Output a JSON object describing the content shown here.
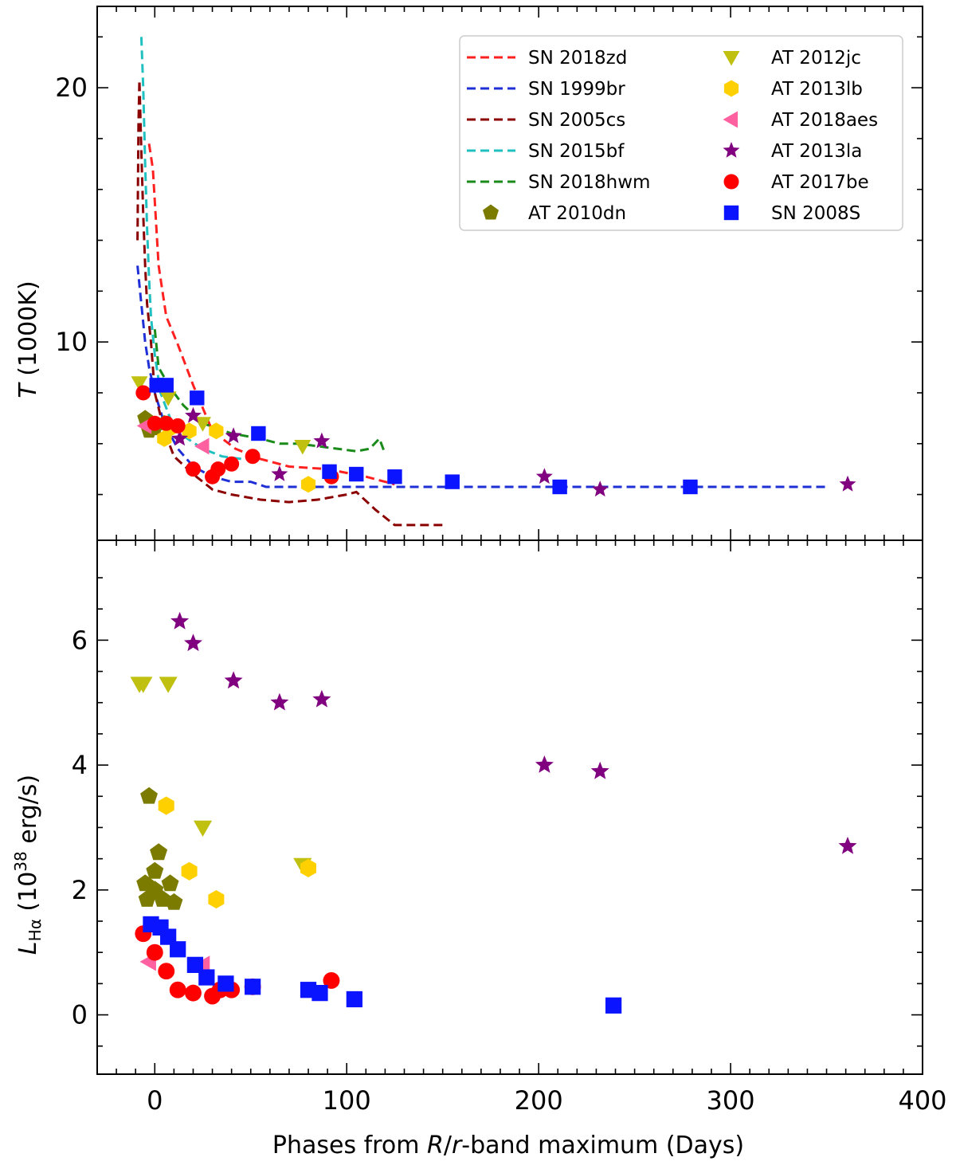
{
  "chart_data": [
    {
      "type": "line+scatter",
      "panel": "top",
      "ylabel_symbol": "T",
      "ylabel_unit": "(1000K)",
      "xlim": [
        -30,
        400
      ],
      "ylim": [
        2.2,
        23.2
      ],
      "yticks_major": [
        10,
        20
      ],
      "legend_position": "top-right",
      "lines": [
        {
          "name": "SN 2018zd",
          "color": "#ff2020",
          "x": [
            -3,
            -1,
            2,
            6,
            12,
            20,
            30,
            42,
            55,
            70,
            90,
            110,
            125
          ],
          "y": [
            17.8,
            16.8,
            13.0,
            11.0,
            9.9,
            8.3,
            6.5,
            5.8,
            5.4,
            5.1,
            5.0,
            4.7,
            4.4
          ]
        },
        {
          "name": "SN 1999br",
          "color": "#1f2fd6",
          "x": [
            -9,
            -7,
            -5,
            -3,
            0,
            5,
            12,
            20,
            30,
            40,
            50,
            58,
            65,
            80,
            120,
            200,
            300,
            350
          ],
          "y": [
            13.0,
            11.5,
            10.0,
            9.0,
            8.0,
            6.8,
            5.8,
            5.1,
            4.7,
            4.5,
            4.5,
            4.3,
            4.3,
            4.3,
            4.3,
            4.3,
            4.3,
            4.3
          ]
        },
        {
          "name": "SN 2005cs",
          "color": "#8b0000",
          "x": [
            -9,
            -8.5,
            -8,
            -7,
            -6,
            -5,
            -4,
            -2,
            0,
            5,
            10,
            20,
            30,
            40,
            55,
            70,
            85,
            100,
            105,
            115,
            125,
            150
          ],
          "y": [
            14.0,
            18.5,
            20.3,
            17.5,
            15.0,
            13.0,
            11.5,
            10.0,
            8.0,
            6.5,
            5.5,
            4.8,
            4.2,
            4.0,
            3.8,
            3.7,
            3.8,
            4.0,
            4.1,
            3.4,
            2.8,
            2.8
          ]
        },
        {
          "name": "SN 2015bf",
          "color": "#20c0c0",
          "x": [
            -7,
            -6,
            -5,
            -4,
            -3,
            -2,
            0,
            3,
            8,
            15,
            25,
            35,
            45
          ],
          "y": [
            22.0,
            20.0,
            17.0,
            14.5,
            12.5,
            11.0,
            9.5,
            8.0,
            7.0,
            6.3,
            5.8,
            5.5,
            5.4
          ]
        },
        {
          "name": "SN 2018hwm",
          "color": "#1a8a1a",
          "x": [
            0,
            2,
            5,
            10,
            15,
            25,
            40,
            55,
            65,
            75,
            85,
            95,
            105,
            112,
            117,
            120
          ],
          "y": [
            10.5,
            9.0,
            8.6,
            8.0,
            7.5,
            6.8,
            6.4,
            6.2,
            6.0,
            6.0,
            5.9,
            5.8,
            5.7,
            5.8,
            6.2,
            5.6
          ]
        }
      ],
      "series": [
        {
          "name": "AT 2010dn",
          "color": "#7b7b00",
          "marker": "pentagon",
          "x": [
            -5,
            -3,
            0,
            5
          ],
          "y": [
            7.0,
            6.5,
            6.6,
            6.8
          ]
        },
        {
          "name": "AT 2012jc",
          "color": "#c0c010",
          "marker": "triangle_down",
          "x": [
            -8,
            7,
            25,
            77
          ],
          "y": [
            8.4,
            7.8,
            6.8,
            5.9
          ]
        },
        {
          "name": "AT 2013lb",
          "color": "#ffd000",
          "marker": "hexagon",
          "x": [
            5,
            8,
            18,
            32,
            80
          ],
          "y": [
            6.2,
            6.6,
            6.5,
            6.5,
            4.4
          ]
        },
        {
          "name": "AT 2018aes",
          "color": "#ff60a0",
          "marker": "triangle_left",
          "x": [
            -5,
            25
          ],
          "y": [
            6.7,
            5.9
          ]
        },
        {
          "name": "AT 2013la",
          "color": "#800080",
          "marker": "star",
          "x": [
            13,
            20,
            41,
            65,
            87,
            203,
            232,
            361
          ],
          "y": [
            6.2,
            7.1,
            6.3,
            4.8,
            6.1,
            4.7,
            4.2,
            4.4
          ]
        },
        {
          "name": "AT 2017be",
          "color": "#ff0000",
          "marker": "circle",
          "x": [
            -6,
            0,
            6,
            12,
            20,
            30,
            33,
            40,
            51,
            92
          ],
          "y": [
            8.0,
            6.8,
            6.8,
            6.7,
            5.0,
            4.7,
            5.0,
            5.2,
            5.5,
            4.7
          ]
        },
        {
          "name": "SN 2008S",
          "color": "#0a14ff",
          "marker": "square",
          "x": [
            1,
            6,
            22,
            54,
            91,
            105,
            125,
            155,
            211,
            279
          ],
          "y": [
            8.3,
            8.3,
            7.8,
            6.4,
            4.9,
            4.8,
            4.7,
            4.5,
            4.3,
            4.3
          ]
        }
      ]
    },
    {
      "type": "scatter",
      "panel": "bottom",
      "ylabel_symbol": "L",
      "ylabel_sub": "Hα",
      "ylabel_unit_prefix": "(10",
      "ylabel_unit_exp": "38",
      "ylabel_unit_suffix": " erg/s)",
      "xlabel_prefix": "Phases from ",
      "xlabel_R": "R",
      "xlabel_slash": "/",
      "xlabel_r": "r",
      "xlabel_suffix": "-band maximum (Days)",
      "xlim": [
        -30,
        400
      ],
      "ylim": [
        -0.95,
        7.6
      ],
      "xticks_major": [
        0,
        100,
        200,
        300,
        400
      ],
      "yticks_major": [
        0,
        2,
        4,
        6
      ],
      "series": [
        {
          "name": "AT 2010dn",
          "color": "#7b7b00",
          "marker": "pentagon",
          "x": [
            -3,
            -5,
            0,
            2,
            4,
            8,
            10,
            -4,
            0
          ],
          "y": [
            3.5,
            2.1,
            2.3,
            2.6,
            1.85,
            2.1,
            1.8,
            1.85,
            2.0
          ]
        },
        {
          "name": "AT 2012jc",
          "color": "#c0c010",
          "marker": "triangle_down",
          "x": [
            -8,
            -6,
            7,
            25,
            77
          ],
          "y": [
            5.3,
            5.3,
            5.3,
            3.0,
            2.4
          ]
        },
        {
          "name": "AT 2013lb",
          "color": "#ffd000",
          "marker": "hexagon",
          "x": [
            6,
            18,
            32,
            80
          ],
          "y": [
            3.35,
            2.3,
            1.85,
            2.35
          ]
        },
        {
          "name": "AT 2018aes",
          "color": "#ff60a0",
          "marker": "triangle_left",
          "x": [
            -3,
            25
          ],
          "y": [
            0.85,
            0.8
          ]
        },
        {
          "name": "AT 2013la",
          "color": "#800080",
          "marker": "star",
          "x": [
            13,
            20,
            41,
            65,
            87,
            203,
            232,
            361
          ],
          "y": [
            6.3,
            5.95,
            5.35,
            5.0,
            5.05,
            4.0,
            3.9,
            2.7
          ]
        },
        {
          "name": "AT 2017be",
          "color": "#ff0000",
          "marker": "circle",
          "x": [
            -6,
            0,
            6,
            12,
            20,
            30,
            34,
            40,
            51,
            92
          ],
          "y": [
            1.3,
            1.0,
            0.7,
            0.4,
            0.35,
            0.3,
            0.4,
            0.4,
            0.45,
            0.55
          ]
        },
        {
          "name": "SN 2008S",
          "color": "#0a14ff",
          "marker": "square",
          "x": [
            -2,
            3,
            7,
            12,
            21,
            27,
            37,
            51,
            80,
            86,
            104,
            239
          ],
          "y": [
            1.45,
            1.4,
            1.25,
            1.05,
            0.8,
            0.6,
            0.5,
            0.45,
            0.4,
            0.35,
            0.25,
            0.15
          ]
        }
      ]
    }
  ]
}
